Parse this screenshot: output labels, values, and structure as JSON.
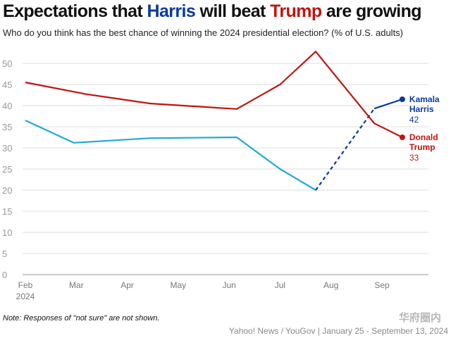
{
  "chart_data": {
    "type": "line",
    "title": {
      "part1": "Expectations that ",
      "harris": "Harris",
      "part2": " will beat ",
      "trump": "Trump",
      "part3": " are growing"
    },
    "subtitle": "Who do you think has the best chance of winning the 2024 presidential election? (% of U.S. adults)",
    "ylim": [
      0,
      50
    ],
    "y_ticks": [
      0,
      5,
      10,
      15,
      20,
      25,
      30,
      35,
      40,
      45,
      50
    ],
    "xlim": [
      0,
      7.65
    ],
    "x_ticks": [
      {
        "label": "Feb",
        "sub": "2024",
        "x": 0
      },
      {
        "label": "Mar",
        "x": 1
      },
      {
        "label": "Apr",
        "x": 2
      },
      {
        "label": "May",
        "x": 3
      },
      {
        "label": "Jun",
        "x": 4
      },
      {
        "label": "Jul",
        "x": 5
      },
      {
        "label": "Aug",
        "x": 6
      },
      {
        "label": "Sep",
        "x": 7
      }
    ],
    "series": [
      {
        "name": "Kamala Harris",
        "label_line1": "Kamala",
        "label_line2": "Harris",
        "end_value": "42",
        "color": "#1eaad8",
        "end_color": "#0a3a9e",
        "points": [
          {
            "x": 0,
            "y": 36.5
          },
          {
            "x": 0.95,
            "y": 31.2
          },
          {
            "x": 2.45,
            "y": 32.3
          },
          {
            "x": 4.15,
            "y": 32.5
          },
          {
            "x": 5.0,
            "y": 25.0
          },
          {
            "x": 5.7,
            "y": 20.0
          },
          {
            "x": 6.85,
            "y": 39.3
          },
          {
            "x": 7.4,
            "y": 41.5
          }
        ],
        "dashed_from_index": 5
      },
      {
        "name": "Donald Trump",
        "label_line1": "Donald",
        "label_line2": "Trump",
        "end_value": "33",
        "color": "#c0150f",
        "end_color": "#c0150f",
        "points": [
          {
            "x": 0,
            "y": 45.5
          },
          {
            "x": 1.2,
            "y": 42.7
          },
          {
            "x": 2.45,
            "y": 40.5
          },
          {
            "x": 4.15,
            "y": 39.2
          },
          {
            "x": 5.0,
            "y": 45.0
          },
          {
            "x": 5.7,
            "y": 52.8
          },
          {
            "x": 6.85,
            "y": 35.8
          },
          {
            "x": 7.4,
            "y": 32.5
          }
        ]
      }
    ]
  },
  "footer": {
    "note": "Note: Responses of \"not sure\" are not shown.",
    "source": "Yahoo! News / YouGov | January 25 - September 13, 2024",
    "watermark": "华府圈内"
  }
}
